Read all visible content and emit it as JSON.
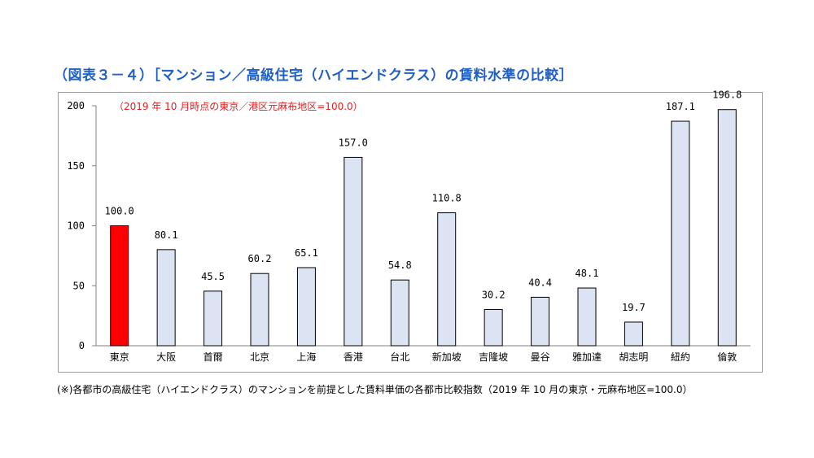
{
  "title": "（図表３－４）［マンション／高級住宅（ハイエンドクラス）の賃料水準の比較］",
  "footnote": "(※)各都市の高級住宅（ハイエンドクラス）のマンションを前提とした賃料単価の各都市比較指数（2019 年 10 月の東京・元麻布地区=100.0）",
  "colors": {
    "title": "#1f5fc4",
    "highlight": "#ff0000",
    "bar": "#dce3f2",
    "note": "#e02020"
  },
  "chart_data": {
    "type": "bar",
    "annotation": "（2019 年 10 月時点の東京／港区元麻布地区=100.0）",
    "categories": [
      "東京",
      "大阪",
      "首爾",
      "北京",
      "上海",
      "香港",
      "台北",
      "新加坡",
      "吉隆坡",
      "曼谷",
      "雅加達",
      "胡志明",
      "紐約",
      "倫敦"
    ],
    "values": [
      100.0,
      80.1,
      45.5,
      60.2,
      65.1,
      157.0,
      54.8,
      110.8,
      30.2,
      40.4,
      48.1,
      19.7,
      187.1,
      196.8
    ],
    "value_labels": [
      "100.0",
      "80.1",
      "45.5",
      "60.2",
      "65.1",
      "157.0",
      "54.8",
      "110.8",
      "30.2",
      "40.4",
      "48.1",
      "19.7",
      "187.1",
      "196.8"
    ],
    "highlight_index": 0,
    "ylim": [
      0,
      200
    ],
    "yticks": [
      0,
      50,
      100,
      150,
      200
    ],
    "grid": false,
    "xlabel": "",
    "ylabel": ""
  }
}
